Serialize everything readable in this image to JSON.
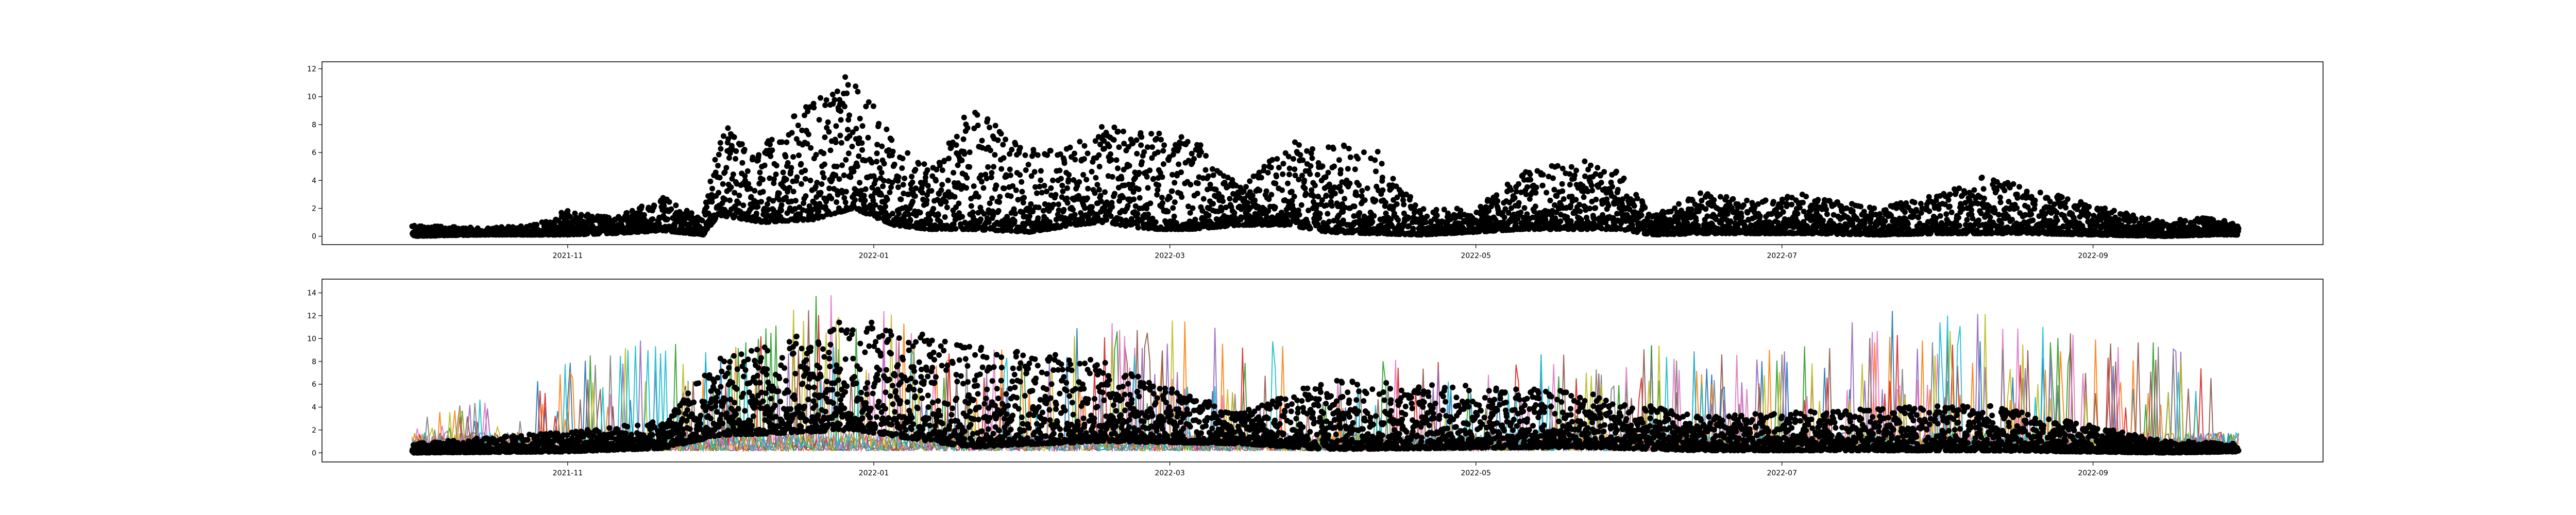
{
  "chart_data": [
    {
      "type": "scatter",
      "marker_color": "#000000",
      "x_range": [
        "2021-10-01",
        "2022-09-30"
      ],
      "ylim": [
        -0.6,
        12.5
      ],
      "yticks": [
        0,
        2,
        4,
        6,
        8,
        10,
        12
      ],
      "xticks": [
        {
          "date": "2021-11-01",
          "label": "2021-11"
        },
        {
          "date": "2022-01-01",
          "label": "2022-01"
        },
        {
          "date": "2022-03-01",
          "label": "2022-03"
        },
        {
          "date": "2022-05-01",
          "label": "2022-05"
        },
        {
          "date": "2022-07-01",
          "label": "2022-07"
        },
        {
          "date": "2022-09-01",
          "label": "2022-09"
        }
      ],
      "grid": false,
      "legend": "none",
      "title": "",
      "xlabel": "",
      "ylabel": "",
      "envelope": [
        {
          "date": "2021-10-01",
          "low": 0.0,
          "high": 0.8
        },
        {
          "date": "2021-10-15",
          "low": 0.1,
          "high": 0.6
        },
        {
          "date": "2021-10-25",
          "low": 0.1,
          "high": 0.8
        },
        {
          "date": "2021-11-01",
          "low": 0.1,
          "high": 1.9
        },
        {
          "date": "2021-11-10",
          "low": 0.2,
          "high": 1.3
        },
        {
          "date": "2021-11-20",
          "low": 0.4,
          "high": 2.8
        },
        {
          "date": "2021-11-28",
          "low": 0.1,
          "high": 1.2
        },
        {
          "date": "2021-12-01",
          "low": 1.5,
          "high": 8.2
        },
        {
          "date": "2021-12-10",
          "low": 1.0,
          "high": 6.5
        },
        {
          "date": "2021-12-20",
          "low": 1.2,
          "high": 10.0
        },
        {
          "date": "2021-12-28",
          "low": 2.0,
          "high": 11.8
        },
        {
          "date": "2022-01-05",
          "low": 0.8,
          "high": 6.8
        },
        {
          "date": "2022-01-12",
          "low": 0.5,
          "high": 5.0
        },
        {
          "date": "2022-01-20",
          "low": 0.5,
          "high": 9.4
        },
        {
          "date": "2022-02-01",
          "low": 0.3,
          "high": 6.2
        },
        {
          "date": "2022-02-10",
          "low": 0.8,
          "high": 6.5
        },
        {
          "date": "2022-02-15",
          "low": 1.0,
          "high": 8.2
        },
        {
          "date": "2022-02-25",
          "low": 0.5,
          "high": 7.5
        },
        {
          "date": "2022-03-05",
          "low": 0.5,
          "high": 7.5
        },
        {
          "date": "2022-03-15",
          "low": 0.8,
          "high": 3.5
        },
        {
          "date": "2022-03-25",
          "low": 0.8,
          "high": 6.9
        },
        {
          "date": "2022-04-01",
          "low": 0.3,
          "high": 6.5
        },
        {
          "date": "2022-04-10",
          "low": 0.2,
          "high": 6.9
        },
        {
          "date": "2022-04-20",
          "low": 0.1,
          "high": 2.0
        },
        {
          "date": "2022-05-01",
          "low": 0.3,
          "high": 2.0
        },
        {
          "date": "2022-05-10",
          "low": 0.5,
          "high": 4.6
        },
        {
          "date": "2022-05-20",
          "low": 0.5,
          "high": 5.5
        },
        {
          "date": "2022-05-30",
          "low": 0.5,
          "high": 5.0
        },
        {
          "date": "2022-06-05",
          "low": 0.1,
          "high": 1.4
        },
        {
          "date": "2022-06-15",
          "low": 0.2,
          "high": 3.2
        },
        {
          "date": "2022-06-25",
          "low": 0.2,
          "high": 2.5
        },
        {
          "date": "2022-07-05",
          "low": 0.2,
          "high": 3.0
        },
        {
          "date": "2022-07-20",
          "low": 0.1,
          "high": 2.0
        },
        {
          "date": "2022-08-01",
          "low": 0.2,
          "high": 3.0
        },
        {
          "date": "2022-08-10",
          "low": 0.2,
          "high": 4.3
        },
        {
          "date": "2022-08-20",
          "low": 0.2,
          "high": 3.5
        },
        {
          "date": "2022-09-01",
          "low": 0.1,
          "high": 2.2
        },
        {
          "date": "2022-09-15",
          "low": 0.0,
          "high": 1.1
        },
        {
          "date": "2022-09-25",
          "low": 0.1,
          "high": 1.4
        },
        {
          "date": "2022-09-30",
          "low": 0.1,
          "high": 0.8
        }
      ]
    },
    {
      "type": "line",
      "x_range": [
        "2021-10-01",
        "2022-09-30"
      ],
      "ylim": [
        -0.8,
        15.2
      ],
      "yticks": [
        0,
        2,
        4,
        6,
        8,
        10,
        12,
        14
      ],
      "xticks": [
        {
          "date": "2021-11-01",
          "label": "2021-11"
        },
        {
          "date": "2022-01-01",
          "label": "2022-01"
        },
        {
          "date": "2022-03-01",
          "label": "2022-03"
        },
        {
          "date": "2022-05-01",
          "label": "2022-05"
        },
        {
          "date": "2022-07-01",
          "label": "2022-07"
        },
        {
          "date": "2022-09-01",
          "label": "2022-09"
        }
      ],
      "grid": false,
      "legend": "none",
      "title": "",
      "xlabel": "",
      "ylabel": "",
      "series_colors": [
        "#1f77b4",
        "#ff7f0e",
        "#2ca02c",
        "#d62728",
        "#9467bd",
        "#8c564b",
        "#e377c2",
        "#7f7f7f",
        "#bcbd22",
        "#17becf"
      ],
      "overlay_marker_color": "#000000",
      "line_peak_envelope": [
        {
          "date": "2021-10-01",
          "high": 3.0
        },
        {
          "date": "2021-10-20",
          "high": 5.5
        },
        {
          "date": "2021-11-01",
          "high": 8.0
        },
        {
          "date": "2021-11-15",
          "high": 10.3
        },
        {
          "date": "2021-12-01",
          "high": 9.0
        },
        {
          "date": "2021-12-20",
          "high": 14.4
        },
        {
          "date": "2022-01-05",
          "high": 12.5
        },
        {
          "date": "2022-01-20",
          "high": 8.5
        },
        {
          "date": "2022-02-15",
          "high": 12.0
        },
        {
          "date": "2022-03-05",
          "high": 12.8
        },
        {
          "date": "2022-04-01",
          "high": 9.0
        },
        {
          "date": "2022-05-01",
          "high": 8.0
        },
        {
          "date": "2022-06-01",
          "high": 9.5
        },
        {
          "date": "2022-07-01",
          "high": 9.0
        },
        {
          "date": "2022-07-20",
          "high": 13.0
        },
        {
          "date": "2022-08-05",
          "high": 12.8
        },
        {
          "date": "2022-09-01",
          "high": 10.0
        },
        {
          "date": "2022-09-30",
          "high": 9.2
        }
      ],
      "overlay_envelope": [
        {
          "date": "2021-10-01",
          "low": 0.0,
          "high": 0.8
        },
        {
          "date": "2021-11-01",
          "low": 0.1,
          "high": 1.9
        },
        {
          "date": "2021-11-20",
          "low": 0.4,
          "high": 2.8
        },
        {
          "date": "2021-12-01",
          "low": 1.5,
          "high": 8.2
        },
        {
          "date": "2021-12-28",
          "low": 2.0,
          "high": 11.8
        },
        {
          "date": "2022-01-20",
          "low": 0.5,
          "high": 9.4
        },
        {
          "date": "2022-02-15",
          "low": 1.0,
          "high": 8.2
        },
        {
          "date": "2022-03-15",
          "low": 0.8,
          "high": 3.5
        },
        {
          "date": "2022-04-01",
          "low": 0.3,
          "high": 6.5
        },
        {
          "date": "2022-05-20",
          "low": 0.5,
          "high": 5.5
        },
        {
          "date": "2022-06-15",
          "low": 0.2,
          "high": 3.2
        },
        {
          "date": "2022-08-10",
          "low": 0.2,
          "high": 4.3
        },
        {
          "date": "2022-09-15",
          "low": 0.0,
          "high": 1.1
        },
        {
          "date": "2022-09-30",
          "low": 0.1,
          "high": 0.8
        }
      ]
    }
  ]
}
